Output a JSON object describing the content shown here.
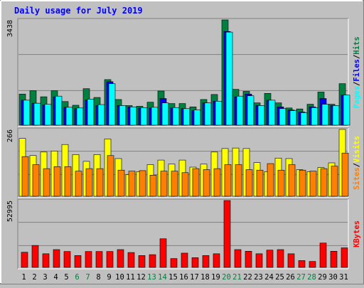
{
  "chart_data": {
    "type": "bar",
    "title": "Daily usage for July 2019",
    "days": [
      "1",
      "2",
      "3",
      "4",
      "5",
      "6",
      "7",
      "8",
      "9",
      "10",
      "11",
      "12",
      "13",
      "14",
      "15",
      "16",
      "17",
      "18",
      "19",
      "20",
      "21",
      "22",
      "23",
      "24",
      "25",
      "26",
      "27",
      "28",
      "29",
      "30",
      "31"
    ],
    "weekend_days": [
      "6",
      "7",
      "13",
      "14",
      "20",
      "21",
      "27",
      "28"
    ],
    "panels": [
      {
        "max_label": "3438",
        "ymax": 3438,
        "series": [
          {
            "name": "Hits",
            "color": "#008040",
            "values": [
              1016,
              1126,
              927,
              1126,
              772,
              651,
              1192,
              905,
              1488,
              838,
              640,
              618,
              750,
              1115,
              706,
              706,
              596,
              838,
              1002,
              3438,
              1170,
              1104,
              728,
              1038,
              728,
              562,
              530,
              684,
              1082,
              684,
              1356
            ]
          },
          {
            "name": "Files",
            "color": "#0000ff",
            "values": [
              816,
              716,
              660,
              926,
              584,
              540,
              816,
              640,
              1420,
              640,
              596,
              562,
              560,
              870,
              562,
              540,
              474,
              728,
              782,
              3060,
              926,
              1016,
              640,
              816,
              596,
              496,
              430,
              596,
              870,
              640,
              982
            ]
          },
          {
            "name": "Pages",
            "color": "#00ffff",
            "values": [
              816,
              716,
              684,
              948,
              584,
              562,
              848,
              672,
              1356,
              640,
              596,
              574,
              584,
              728,
              574,
              540,
              496,
              728,
              782,
              3040,
              948,
              960,
              640,
              816,
              540,
              474,
              408,
              574,
              684,
              640,
              982
            ]
          }
        ]
      },
      {
        "max_label": "266",
        "ymax": 266,
        "series": [
          {
            "name": "Visits",
            "color": "#ffff00",
            "values": [
              230,
              162,
              176,
              180,
              206,
              166,
              139,
              166,
              228,
              150,
              86,
              98,
              126,
              144,
              128,
              144,
              116,
              128,
              176,
              190,
              192,
              190,
              134,
              98,
              152,
              150,
              106,
              98,
              114,
              133,
              266
            ]
          },
          {
            "name": "Sites",
            "color": "#ff8000",
            "values": [
              158,
              126,
              110,
              118,
              118,
              100,
              110,
              110,
              162,
              104,
              100,
              102,
              84,
              100,
              100,
              94,
              110,
              106,
              110,
              126,
              126,
              106,
              104,
              130,
              104,
              126,
              104,
              100,
              110,
              120,
              172
            ]
          }
        ]
      },
      {
        "max_label": "52995",
        "ymax": 52995,
        "series": [
          {
            "name": "KBytes",
            "color": "#ff0000",
            "values": [
              12000,
              17400,
              10800,
              14100,
              12600,
              9400,
              12600,
              12600,
              12600,
              14100,
              11800,
              9400,
              10100,
              22700,
              7000,
              11300,
              7700,
              9400,
              10800,
              52995,
              14100,
              12800,
              10800,
              13700,
              14100,
              10800,
              5400,
              4700,
              19300,
              12800,
              15500
            ]
          }
        ]
      }
    ],
    "legend": {
      "top": [
        "Pages",
        "Files",
        "Hits"
      ],
      "middle": [
        "Sites",
        "Visits"
      ],
      "bottom": [
        "KBytes"
      ]
    }
  }
}
